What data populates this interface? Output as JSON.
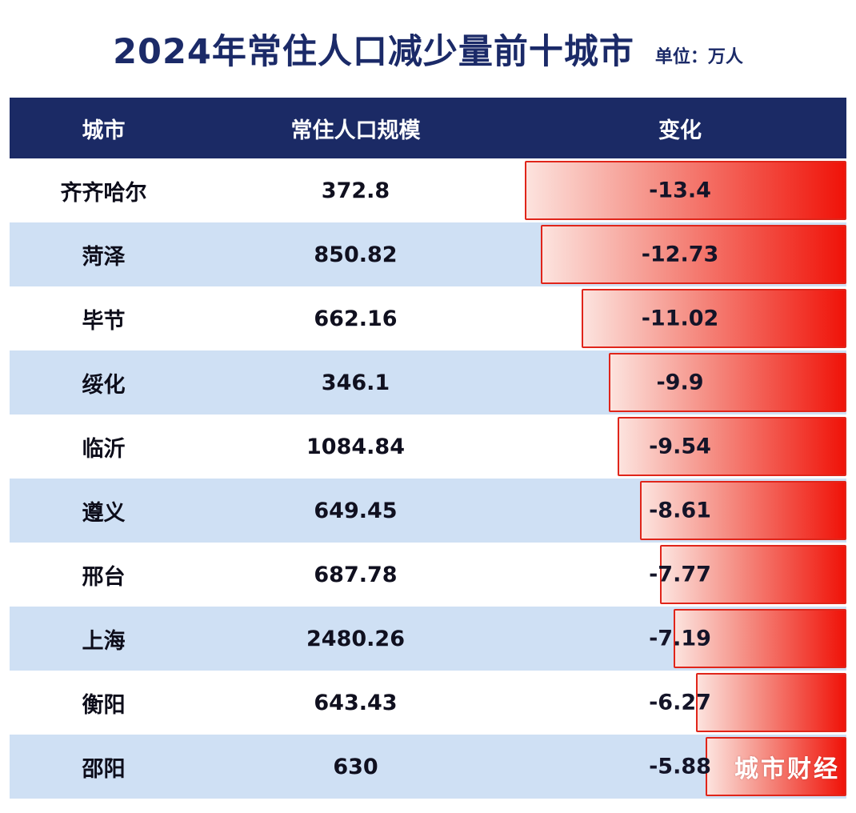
{
  "unit_label": "单位：万人",
  "watermark": "城市财经",
  "colors": {
    "navy": "#1b2a65",
    "stripe_blue": "#cfe0f4",
    "bar_red_start": "#fce3de",
    "bar_red_end": "#f01309",
    "bar_border": "#e0251a",
    "title_text": "#1b2a68",
    "header_text": "#ffffff"
  },
  "chart_data": {
    "type": "bar",
    "title": "2024年常住人口减少量前十城市",
    "unit": "万人",
    "columns": [
      "城市",
      "常住人口规模",
      "变化"
    ],
    "bar_axis_max": 13.4,
    "legend": "none",
    "rows": [
      {
        "city": "齐齐哈尔",
        "population": "372.8",
        "change": "-13.4"
      },
      {
        "city": "菏泽",
        "population": "850.82",
        "change": "-12.73"
      },
      {
        "city": "毕节",
        "population": "662.16",
        "change": "-11.02"
      },
      {
        "city": "绥化",
        "population": "346.1",
        "change": "-9.9"
      },
      {
        "city": "临沂",
        "population": "1084.84",
        "change": "-9.54"
      },
      {
        "city": "遵义",
        "population": "649.45",
        "change": "-8.61"
      },
      {
        "city": "邢台",
        "population": "687.78",
        "change": "-7.77"
      },
      {
        "city": "上海",
        "population": "2480.26",
        "change": "-7.19"
      },
      {
        "city": "衡阳",
        "population": "643.43",
        "change": "-6.27"
      },
      {
        "city": "邵阳",
        "population": "630",
        "change": "-5.88"
      }
    ]
  }
}
